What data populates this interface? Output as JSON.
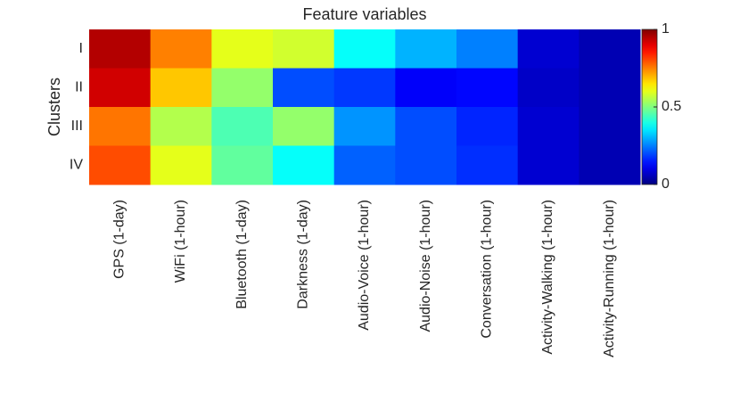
{
  "chart_data": {
    "type": "heatmap",
    "title": "Feature variables",
    "y_label": "Clusters",
    "x_categories": [
      "GPS (1-day)",
      "WiFi (1-hour)",
      "Bluetooth (1-day)",
      "Darkness (1-day)",
      "Audio-Voice (1-hour)",
      "Audio-Noise (1-hour)",
      "Conversation (1-hour)",
      "Activity-Walking (1-hour)",
      "Activity-Running (1-hour)"
    ],
    "y_categories": [
      "I",
      "II",
      "III",
      "IV"
    ],
    "values": [
      [
        0.95,
        0.75,
        0.6,
        0.58,
        0.38,
        0.3,
        0.25,
        0.08,
        0.05
      ],
      [
        0.92,
        0.68,
        0.52,
        0.2,
        0.18,
        0.12,
        0.13,
        0.07,
        0.05
      ],
      [
        0.76,
        0.55,
        0.45,
        0.52,
        0.27,
        0.2,
        0.16,
        0.08,
        0.05
      ],
      [
        0.8,
        0.6,
        0.47,
        0.38,
        0.22,
        0.2,
        0.17,
        0.08,
        0.05
      ]
    ],
    "colormap": "jet",
    "clim": [
      0,
      1
    ],
    "cticks": [
      0,
      0.5,
      1
    ]
  }
}
